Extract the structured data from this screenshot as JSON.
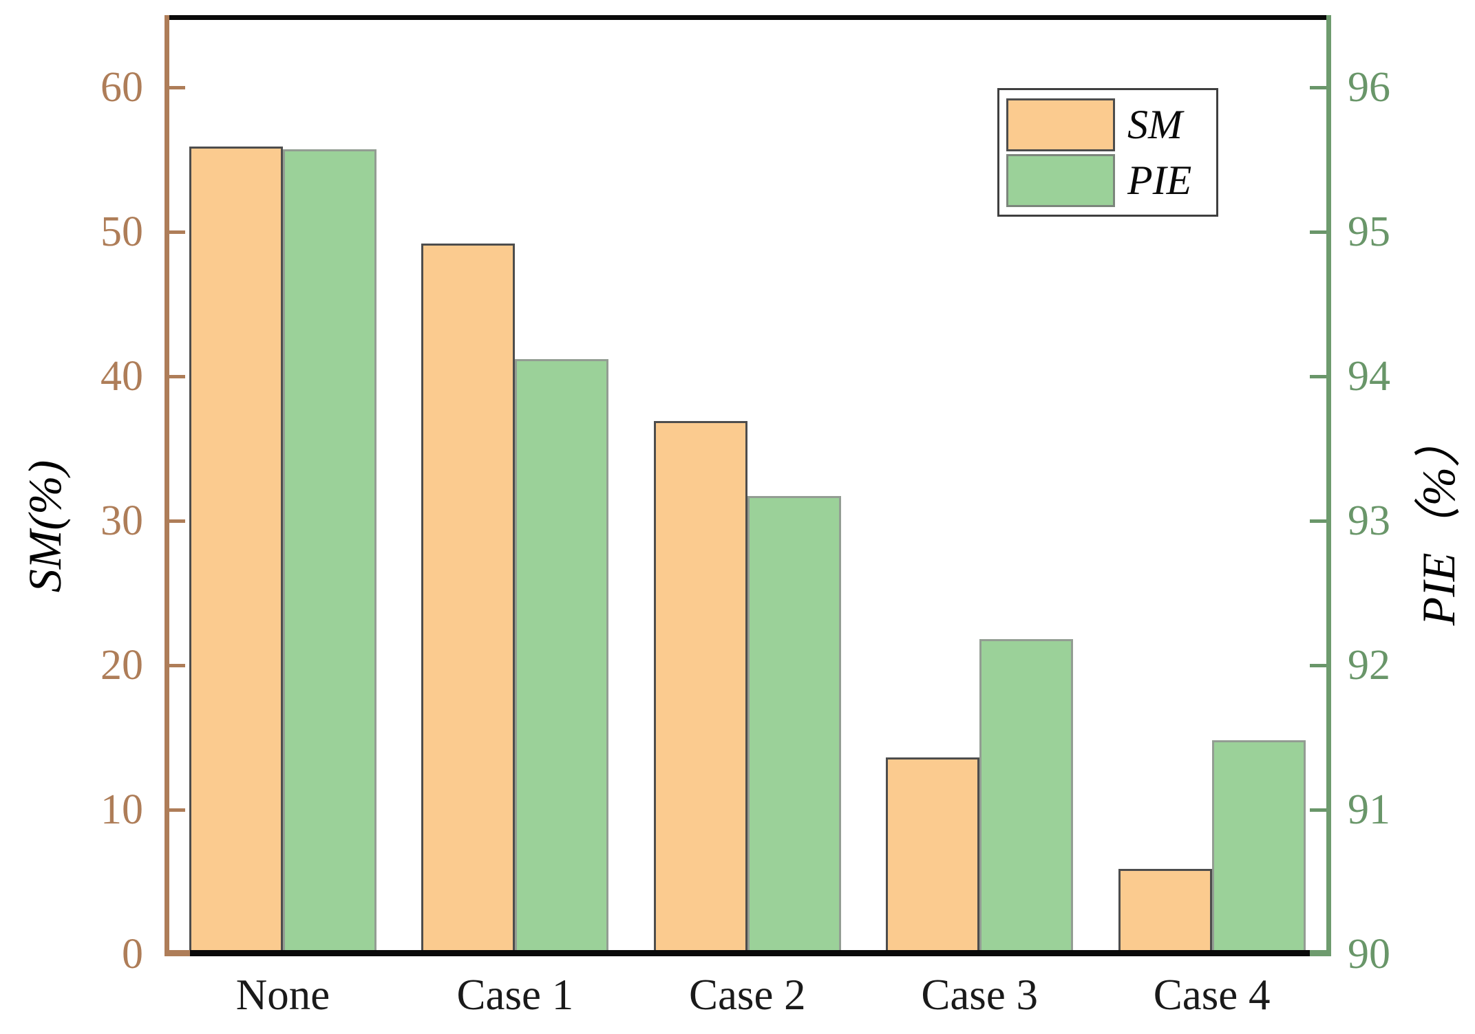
{
  "chart_data": {
    "type": "bar",
    "categories": [
      "None",
      "Case 1",
      "Case 2",
      "Case 3",
      "Case 4"
    ],
    "series": [
      {
        "name": "SM",
        "axis": "left",
        "color": "#FBCB8F",
        "edge_color": "#4d4d4d",
        "values": [
          55.9,
          49.2,
          36.9,
          13.6,
          5.9
        ]
      },
      {
        "name": "PIE",
        "axis": "right",
        "color": "#9BD199",
        "edge_color": "#939d93",
        "values": [
          95.57,
          94.12,
          93.17,
          92.18,
          91.48
        ]
      }
    ],
    "left_axis": {
      "label": "SM(%)",
      "ticks": [
        0,
        10,
        20,
        30,
        40,
        50,
        60
      ],
      "ylim": [
        90,
        96.486
      ],
      "ylim_left": [
        0,
        64.86
      ],
      "color": "#AE7D58"
    },
    "right_axis": {
      "label": "PIE（%）",
      "ticks": [
        90,
        91,
        92,
        93,
        94,
        95,
        96
      ],
      "ylim": [
        90,
        96.486
      ],
      "color": "#699669"
    },
    "legend": {
      "position": "top-right",
      "entries": [
        "SM",
        "PIE"
      ]
    },
    "title": "",
    "grid": false
  }
}
